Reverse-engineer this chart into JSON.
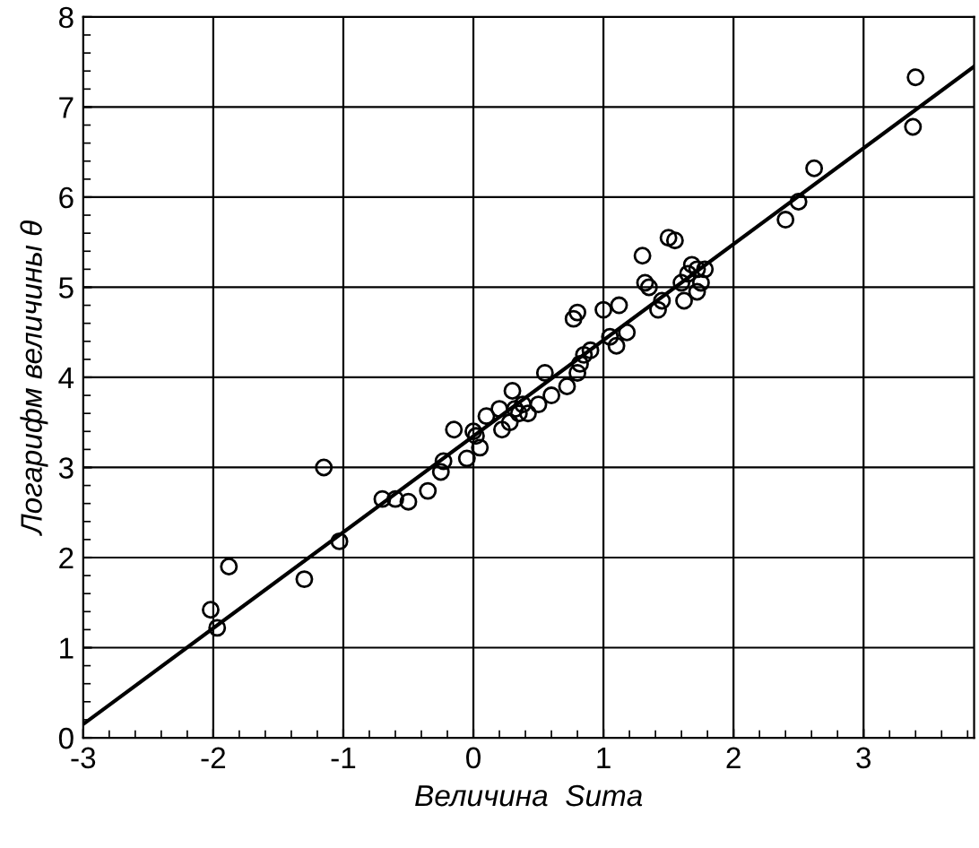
{
  "chart_data": {
    "type": "scatter",
    "xlabel": "Величина  Suma",
    "ylabel": "Логарифм величины θ",
    "xlim": [
      -3,
      3.85
    ],
    "ylim": [
      0,
      8
    ],
    "xticks": [
      -3,
      -2,
      -1,
      0,
      1,
      2,
      3
    ],
    "yticks": [
      0,
      1,
      2,
      3,
      4,
      5,
      6,
      7,
      8
    ],
    "grid": true,
    "legend": false,
    "series": [
      {
        "marker": "circle",
        "color": "#000000",
        "x": [
          -2.02,
          -1.97,
          -1.88,
          -1.3,
          -1.15,
          -1.03,
          -0.7,
          -0.6,
          -0.5,
          -0.35,
          -0.25,
          -0.23,
          -0.15,
          -0.05,
          0.0,
          0.02,
          0.05,
          0.1,
          0.2,
          0.22,
          0.28,
          0.3,
          0.32,
          0.35,
          0.38,
          0.42,
          0.5,
          0.55,
          0.6,
          0.72,
          0.77,
          0.8,
          0.8,
          0.82,
          0.85,
          0.9,
          1.0,
          1.05,
          1.1,
          1.12,
          1.18,
          1.3,
          1.32,
          1.35,
          1.42,
          1.45,
          1.5,
          1.55,
          1.6,
          1.62,
          1.65,
          1.68,
          1.72,
          1.75,
          1.78,
          1.72,
          2.4,
          2.5,
          2.62,
          3.4,
          3.38
        ],
        "values": [
          1.42,
          1.22,
          1.9,
          1.76,
          3.0,
          2.18,
          2.65,
          2.65,
          2.62,
          2.74,
          2.95,
          3.07,
          3.42,
          3.1,
          3.4,
          3.35,
          3.22,
          3.57,
          3.65,
          3.42,
          3.5,
          3.85,
          3.65,
          3.6,
          3.7,
          3.6,
          3.7,
          4.05,
          3.8,
          3.9,
          4.65,
          4.72,
          4.05,
          4.15,
          4.25,
          4.3,
          4.75,
          4.45,
          4.35,
          4.8,
          4.5,
          5.35,
          5.05,
          5.0,
          4.75,
          4.85,
          5.55,
          5.52,
          5.05,
          4.85,
          5.15,
          5.25,
          5.2,
          5.05,
          5.2,
          4.95,
          5.75,
          5.95,
          6.32,
          7.33,
          6.78
        ]
      },
      {
        "type": "line",
        "marker": "none",
        "line_style": "solid",
        "color": "#000000",
        "x": [
          -3,
          3.85
        ],
        "values": [
          0.15,
          7.45
        ]
      }
    ]
  }
}
